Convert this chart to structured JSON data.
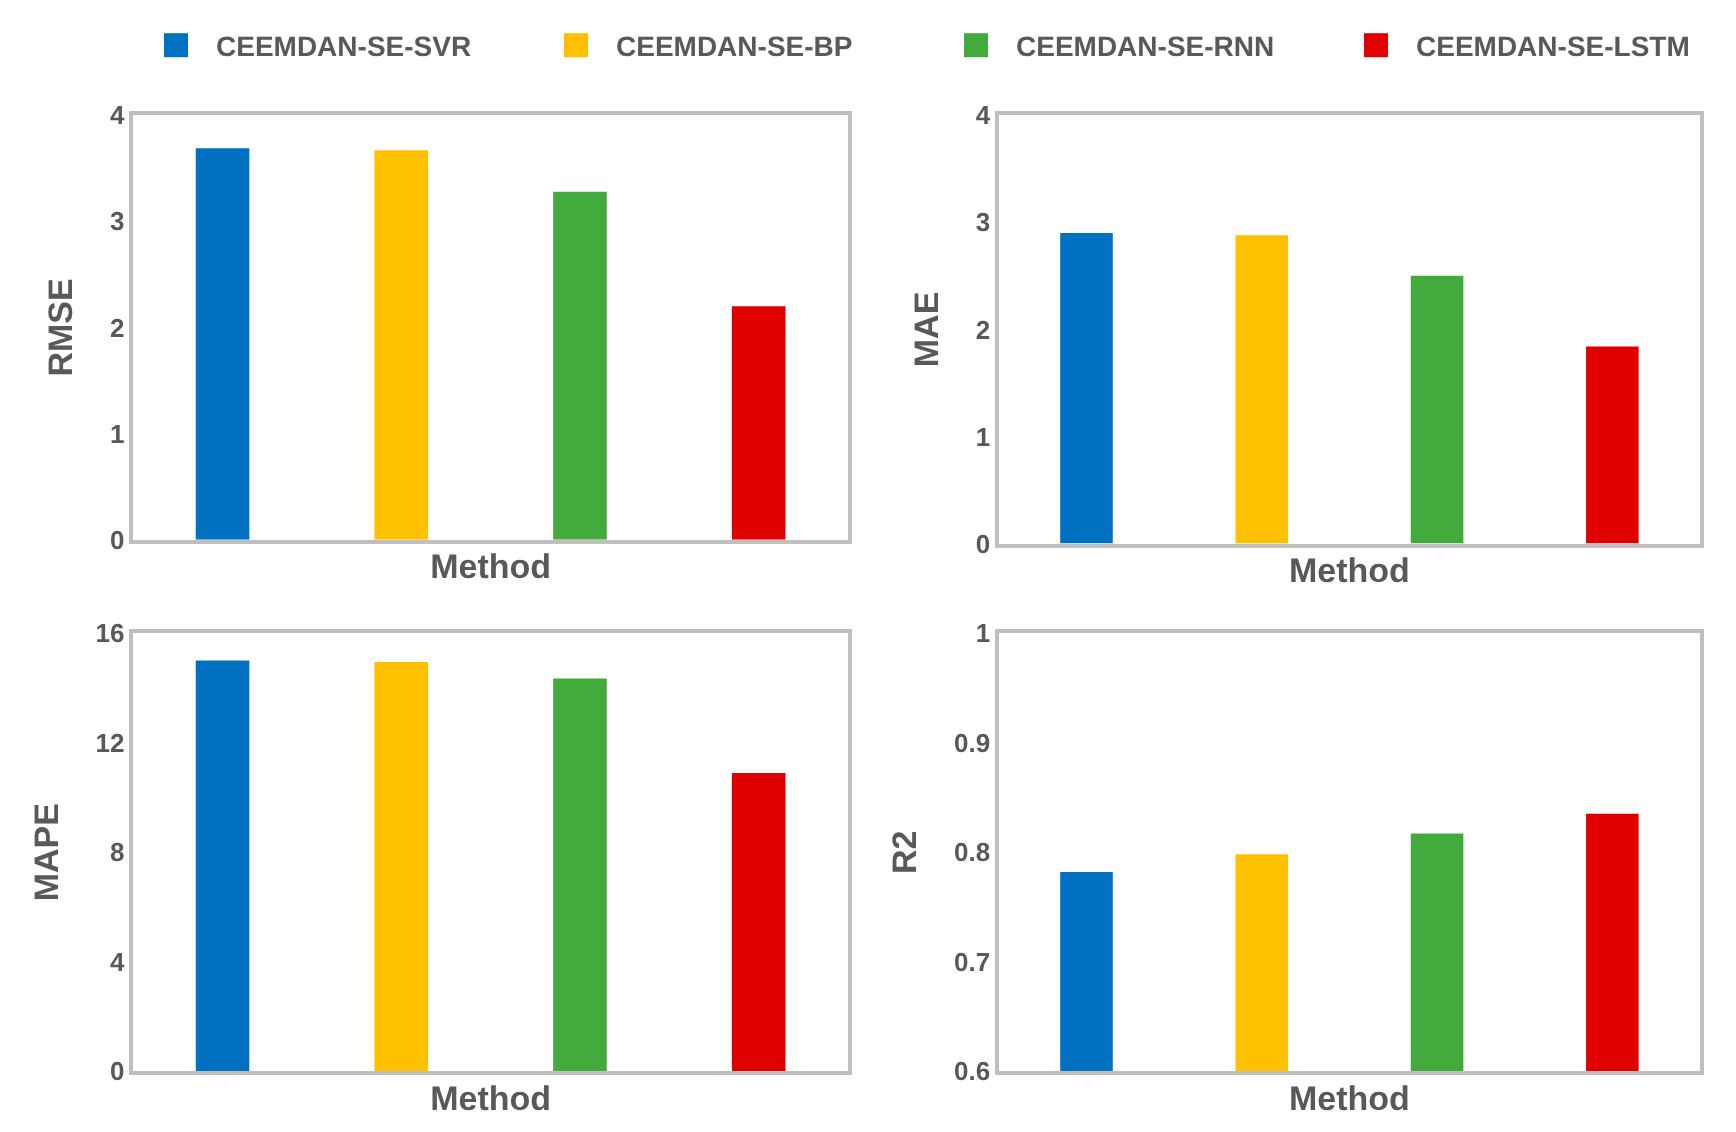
{
  "chart_data": [
    {
      "type": "bar",
      "ylabel": "RMSE",
      "xlabel": "Method",
      "categories": [
        null,
        null,
        null,
        null
      ],
      "ylim": [
        0,
        4
      ],
      "yticks": [
        0,
        1,
        2,
        3,
        4
      ],
      "legend": "top",
      "series": [
        {
          "name": "CEEMDAN-SE-SVR",
          "color": "#0070c0",
          "values": [
            3.69,
            null,
            null,
            null
          ]
        },
        {
          "name": "CEEMDAN-SE-BP",
          "color": "#ffc000",
          "values": [
            null,
            3.67,
            null,
            null
          ]
        },
        {
          "name": "CEEMDAN-SE-RNN",
          "color": "#43ab3c",
          "values": [
            null,
            null,
            3.28,
            null
          ]
        },
        {
          "name": "CEEMDAN-SE-LSTM",
          "color": "#e00000",
          "values": [
            null,
            null,
            null,
            2.2
          ]
        }
      ]
    },
    {
      "type": "bar",
      "ylabel": "MAE",
      "xlabel": "Method",
      "categories": [
        null,
        null,
        null,
        null
      ],
      "ylim": [
        0,
        4
      ],
      "yticks": [
        0,
        1,
        2,
        3,
        4
      ],
      "series": [
        {
          "color": "#0070c0",
          "values": [
            2.9,
            null,
            null,
            null
          ]
        },
        {
          "color": "#ffc000",
          "values": [
            null,
            2.88,
            null,
            null
          ]
        },
        {
          "color": "#43ab3c",
          "values": [
            null,
            null,
            2.5,
            null
          ]
        },
        {
          "color": "#e00000",
          "values": [
            null,
            null,
            null,
            1.84
          ]
        }
      ]
    },
    {
      "type": "bar",
      "ylabel": "MAPE",
      "xlabel": "Method",
      "categories": [
        null,
        null,
        null,
        null
      ],
      "ylim": [
        0,
        16
      ],
      "yticks": [
        0,
        4,
        8,
        12,
        16
      ],
      "series": [
        {
          "color": "#0070c0",
          "values": [
            15.0,
            null,
            null,
            null
          ]
        },
        {
          "color": "#ffc000",
          "values": [
            null,
            14.95,
            null,
            null
          ]
        },
        {
          "color": "#43ab3c",
          "values": [
            null,
            null,
            14.34,
            null
          ]
        },
        {
          "color": "#e00000",
          "values": [
            null,
            null,
            null,
            10.89
          ]
        }
      ]
    },
    {
      "type": "bar",
      "ylabel": "R2",
      "xlabel": "Method",
      "categories": [
        null,
        null,
        null,
        null
      ],
      "ylim": [
        0.6,
        1
      ],
      "yticks": [
        0.6,
        0.7,
        0.8,
        0.9,
        1
      ],
      "series": [
        {
          "color": "#0070c0",
          "values": [
            0.782,
            null,
            null,
            null
          ]
        },
        {
          "color": "#ffc000",
          "values": [
            null,
            0.798,
            null,
            null
          ]
        },
        {
          "color": "#43ab3c",
          "values": [
            null,
            null,
            0.817,
            null
          ]
        },
        {
          "color": "#e00000",
          "values": [
            null,
            null,
            null,
            0.835
          ]
        }
      ]
    }
  ]
}
